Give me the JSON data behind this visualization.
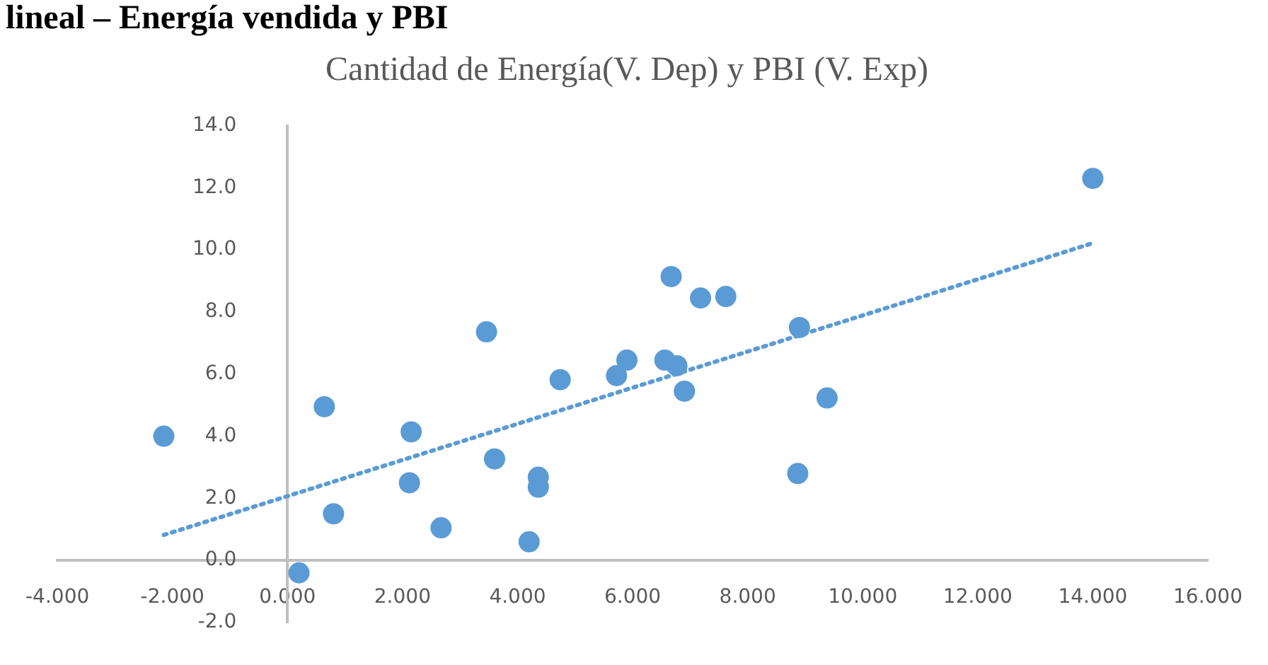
{
  "chart_data": {
    "type": "scatter",
    "title": "Cantidad de Energía(V. Dep) y PBI (V. Exp)",
    "annotations": [
      "lineal – Energía vendida y PBI"
    ],
    "series": [
      {
        "color": "#5b9bd5",
        "marker": "circle",
        "x": [
          -2.15,
          0.2,
          0.64,
          0.8,
          2.15,
          2.12,
          2.67,
          3.46,
          3.6,
          4.36,
          4.36,
          4.2,
          4.74,
          5.72,
          5.9,
          6.56,
          6.67,
          6.77,
          6.9,
          7.18,
          7.62,
          8.9,
          8.87,
          9.38,
          14.0
        ],
        "values": [
          4.0,
          -0.4,
          4.95,
          1.5,
          4.14,
          2.5,
          1.05,
          7.36,
          3.27,
          2.68,
          2.36,
          0.6,
          5.82,
          5.95,
          6.45,
          6.45,
          9.14,
          6.27,
          5.45,
          8.45,
          8.5,
          7.5,
          2.8,
          5.23,
          12.3
        ]
      },
      {
        "type": "line",
        "color": "#5b9bd5",
        "line_style": "dotted",
        "x": [
          -2.15,
          13.97
        ],
        "values": [
          0.82,
          10.2
        ]
      }
    ],
    "xlim": [
      -4,
      16
    ],
    "ylim": [
      -2,
      14
    ],
    "xticks": [
      {
        "value": -4,
        "label": "-4.000"
      },
      {
        "value": -2,
        "label": "-2.000"
      },
      {
        "value": 0,
        "label": "0.000"
      },
      {
        "value": 2,
        "label": "2.000"
      },
      {
        "value": 4,
        "label": "4.000"
      },
      {
        "value": 6,
        "label": "6.000"
      },
      {
        "value": 8,
        "label": "8.000"
      },
      {
        "value": 10,
        "label": "10.000"
      },
      {
        "value": 12,
        "label": "12.000"
      },
      {
        "value": 14,
        "label": "14.000"
      },
      {
        "value": 16,
        "label": "16.000"
      }
    ],
    "yticks": [
      {
        "value": -2,
        "label": "-2.0"
      },
      {
        "value": 0,
        "label": "0.0"
      },
      {
        "value": 2,
        "label": "2.0"
      },
      {
        "value": 4,
        "label": "4.0"
      },
      {
        "value": 6,
        "label": "6.0"
      },
      {
        "value": 8,
        "label": "8.0"
      },
      {
        "value": 10,
        "label": "10.0"
      },
      {
        "value": 12,
        "label": "12.0"
      },
      {
        "value": 14,
        "label": "14.0"
      }
    ],
    "grid": false,
    "legend": false
  }
}
